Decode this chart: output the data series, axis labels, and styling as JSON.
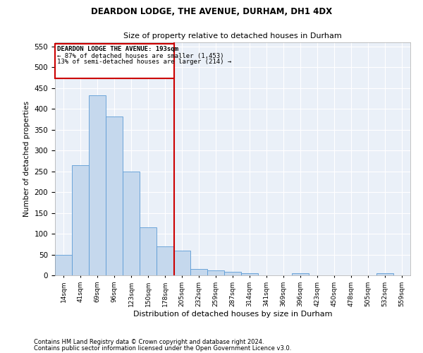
{
  "title1": "DEARDON LODGE, THE AVENUE, DURHAM, DH1 4DX",
  "title2": "Size of property relative to detached houses in Durham",
  "xlabel": "Distribution of detached houses by size in Durham",
  "ylabel": "Number of detached properties",
  "bar_color": "#c5d8ed",
  "bar_edgecolor": "#5b9bd5",
  "background_color": "#eaf0f8",
  "grid_color": "#ffffff",
  "annotation_line_color": "#cc0000",
  "annotation_box_color": "#cc0000",
  "categories": [
    "14sqm",
    "41sqm",
    "69sqm",
    "96sqm",
    "123sqm",
    "150sqm",
    "178sqm",
    "205sqm",
    "232sqm",
    "259sqm",
    "287sqm",
    "314sqm",
    "341sqm",
    "369sqm",
    "396sqm",
    "423sqm",
    "450sqm",
    "478sqm",
    "505sqm",
    "532sqm",
    "559sqm"
  ],
  "values": [
    50,
    265,
    432,
    382,
    250,
    115,
    70,
    60,
    15,
    12,
    8,
    5,
    0,
    0,
    5,
    0,
    0,
    0,
    0,
    5,
    0
  ],
  "ylim": [
    0,
    560
  ],
  "yticks": [
    0,
    50,
    100,
    150,
    200,
    250,
    300,
    350,
    400,
    450,
    500,
    550
  ],
  "annotation_title": "DEARDON LODGE THE AVENUE: 193sqm",
  "annotation_line1": "← 87% of detached houses are smaller (1,453)",
  "annotation_line2": "13% of semi-detached houses are larger (214) →",
  "footer1": "Contains HM Land Registry data © Crown copyright and database right 2024.",
  "footer2": "Contains public sector information licensed under the Open Government Licence v3.0."
}
